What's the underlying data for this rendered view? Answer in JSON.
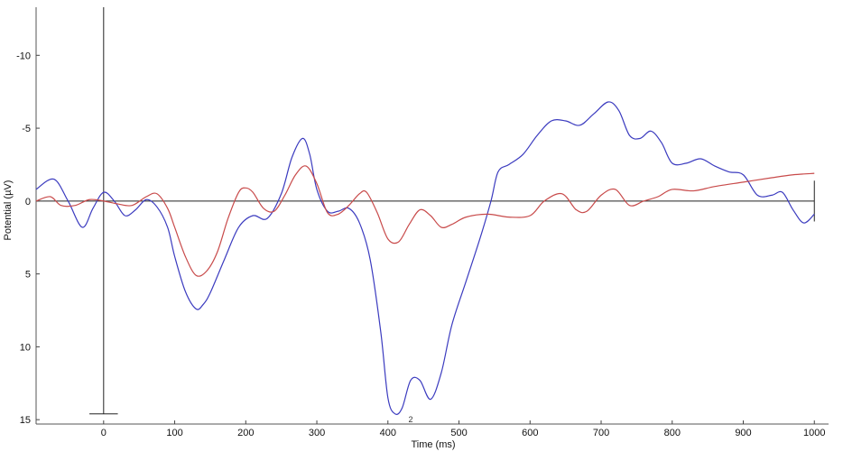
{
  "chart_data": {
    "type": "line",
    "title": "",
    "xlabel": "Time (ms)",
    "ylabel": "Potential (µV)",
    "xlim": [
      -95,
      1020
    ],
    "ylim": [
      15.3,
      -13.3
    ],
    "y_inverted": true,
    "x_ticks": [
      0,
      100,
      200,
      300,
      400,
      500,
      600,
      700,
      800,
      900,
      1000
    ],
    "x_tick_labels": [
      "0",
      "100",
      "200",
      "300",
      "400",
      "500",
      "600",
      "700",
      "800",
      "900",
      "1000"
    ],
    "y_ticks": [
      -10,
      -5,
      0,
      5,
      10,
      15
    ],
    "y_tick_labels": [
      "-10",
      "-5",
      "0",
      "5",
      "10",
      "15"
    ],
    "grid": false,
    "annotations": [
      {
        "text": "2",
        "x": 432,
        "y": 15.3
      }
    ],
    "series": [
      {
        "color": "#3b3bbf",
        "x": [
          -95,
          -70,
          -50,
          -30,
          -15,
          0,
          15,
          30,
          45,
          60,
          75,
          90,
          100,
          115,
          130,
          140,
          150,
          170,
          190,
          210,
          230,
          250,
          265,
          280,
          290,
          300,
          315,
          330,
          345,
          360,
          375,
          390,
          400,
          410,
          420,
          432,
          445,
          460,
          475,
          490,
          510,
          530,
          545,
          555,
          570,
          590,
          610,
          630,
          650,
          670,
          690,
          710,
          725,
          740,
          755,
          770,
          785,
          800,
          820,
          840,
          860,
          880,
          900,
          920,
          940,
          955,
          970,
          985,
          1000
        ],
        "values": [
          -0.8,
          -1.5,
          0.0,
          1.8,
          0.5,
          -0.6,
          0.0,
          1.0,
          0.6,
          -0.1,
          0.4,
          1.8,
          3.8,
          6.2,
          7.4,
          7.1,
          6.3,
          4.0,
          1.8,
          1.0,
          1.2,
          -0.5,
          -3.0,
          -4.3,
          -3.2,
          -0.8,
          0.7,
          0.7,
          0.5,
          1.5,
          4.0,
          9.0,
          13.5,
          14.6,
          14.2,
          12.3,
          12.3,
          13.6,
          11.8,
          8.5,
          5.5,
          2.5,
          0.0,
          -2.0,
          -2.5,
          -3.2,
          -4.5,
          -5.5,
          -5.5,
          -5.2,
          -6.0,
          -6.8,
          -6.2,
          -4.5,
          -4.3,
          -4.8,
          -4.0,
          -2.6,
          -2.6,
          -2.9,
          -2.4,
          -2.0,
          -1.8,
          -0.4,
          -0.4,
          -0.6,
          0.6,
          1.5,
          0.9
        ]
      },
      {
        "color": "#c84a4a",
        "x": [
          -95,
          -75,
          -60,
          -40,
          -20,
          0,
          20,
          40,
          60,
          75,
          90,
          100,
          115,
          130,
          145,
          160,
          175,
          190,
          200,
          210,
          225,
          240,
          255,
          270,
          285,
          300,
          315,
          330,
          345,
          360,
          370,
          385,
          400,
          415,
          430,
          445,
          460,
          475,
          490,
          510,
          540,
          570,
          600,
          620,
          645,
          665,
          680,
          700,
          720,
          740,
          760,
          780,
          800,
          830,
          860,
          900,
          940,
          970,
          1000
        ],
        "values": [
          0.0,
          -0.3,
          0.3,
          0.3,
          -0.1,
          0.0,
          0.2,
          0.3,
          -0.3,
          -0.5,
          0.5,
          1.8,
          3.8,
          5.1,
          4.8,
          3.5,
          1.2,
          -0.6,
          -0.9,
          -0.6,
          0.5,
          0.7,
          -0.4,
          -1.8,
          -2.4,
          -1.2,
          0.8,
          0.9,
          0.3,
          -0.5,
          -0.6,
          0.8,
          2.6,
          2.8,
          1.6,
          0.6,
          1.0,
          1.8,
          1.6,
          1.1,
          0.9,
          1.1,
          1.0,
          0.0,
          -0.5,
          0.6,
          0.7,
          -0.4,
          -0.8,
          0.3,
          0.0,
          -0.3,
          -0.8,
          -0.7,
          -1.0,
          -1.3,
          -1.6,
          -1.8,
          -1.9
        ]
      }
    ]
  }
}
